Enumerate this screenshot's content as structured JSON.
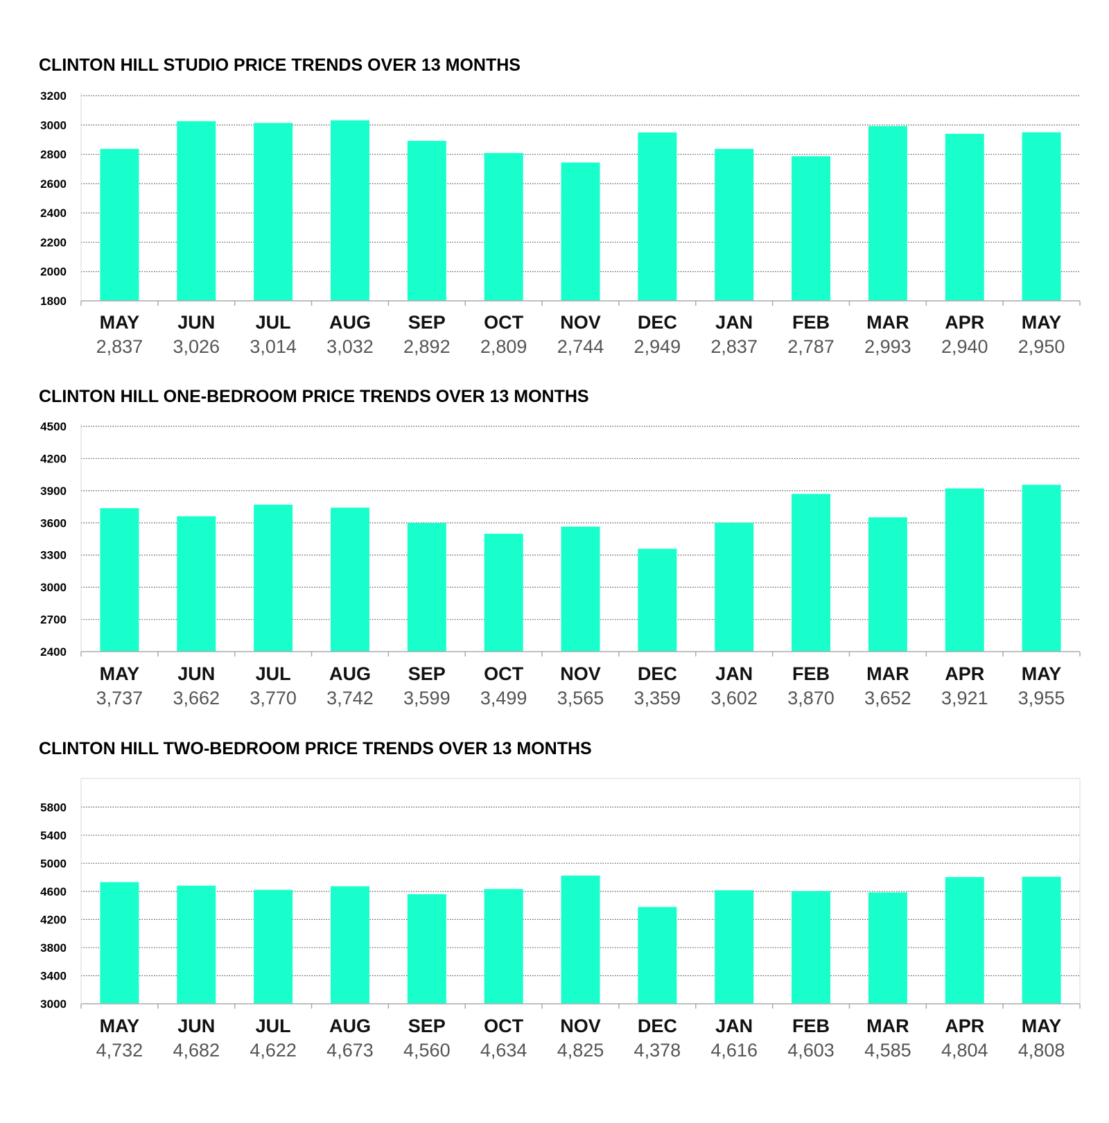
{
  "colors": {
    "bar": "#19ffcc",
    "grid": "#555555",
    "axis": "#aaaaaa",
    "title": "#000000",
    "month": "#111111",
    "value": "#555555"
  },
  "chart_data": [
    {
      "type": "bar",
      "title": "CLINTON HILL STUDIO PRICE TRENDS OVER 13 MONTHS",
      "categories": [
        "MAY",
        "JUN",
        "JUL",
        "AUG",
        "SEP",
        "OCT",
        "NOV",
        "DEC",
        "JAN",
        "FEB",
        "MAR",
        "APR",
        "MAY"
      ],
      "values": [
        2837,
        3026,
        3014,
        3032,
        2892,
        2809,
        2744,
        2949,
        2837,
        2787,
        2993,
        2940,
        2950
      ],
      "value_labels": [
        "2,837",
        "3,026",
        "3,014",
        "3,032",
        "2,892",
        "2,809",
        "2,744",
        "2,949",
        "2,837",
        "2,787",
        "2,993",
        "2,940",
        "2,950"
      ],
      "yticks": [
        "1800",
        "2000",
        "2200",
        "2400",
        "2600",
        "2800",
        "3000",
        "3200"
      ],
      "ylim": [
        1800,
        3200
      ],
      "grid": true
    },
    {
      "type": "bar",
      "title": "CLINTON HILL ONE-BEDROOM PRICE TRENDS OVER 13 MONTHS",
      "categories": [
        "MAY",
        "JUN",
        "JUL",
        "AUG",
        "SEP",
        "OCT",
        "NOV",
        "DEC",
        "JAN",
        "FEB",
        "MAR",
        "APR",
        "MAY"
      ],
      "values": [
        3737,
        3662,
        3770,
        3742,
        3599,
        3499,
        3565,
        3359,
        3602,
        3870,
        3652,
        3921,
        3955
      ],
      "value_labels": [
        "3,737",
        "3,662",
        "3,770",
        "3,742",
        "3,599",
        "3,499",
        "3,565",
        "3,359",
        "3,602",
        "3,870",
        "3,652",
        "3,921",
        "3,955"
      ],
      "yticks": [
        "2400",
        "2700",
        "3000",
        "3300",
        "3600",
        "3900",
        "4200",
        "4500"
      ],
      "ylim": [
        2400,
        4500
      ],
      "grid": true
    },
    {
      "type": "bar",
      "title": "CLINTON HILL TWO-BEDROOM PRICE TRENDS OVER 13 MONTHS",
      "categories": [
        "MAY",
        "JUN",
        "JUL",
        "AUG",
        "SEP",
        "OCT",
        "NOV",
        "DEC",
        "JAN",
        "FEB",
        "MAR",
        "APR",
        "MAY"
      ],
      "values": [
        4732,
        4682,
        4622,
        4673,
        4560,
        4634,
        4825,
        4378,
        4616,
        4603,
        4585,
        4804,
        4808
      ],
      "value_labels": [
        "4,732",
        "4,682",
        "4,622",
        "4,673",
        "4,560",
        "4,634",
        "4,825",
        "4,378",
        "4,616",
        "4,603",
        "4,585",
        "4,804",
        "4,808"
      ],
      "yticks": [
        "3000",
        "3400",
        "3800",
        "4200",
        "4600",
        "5000",
        "5400",
        "5800"
      ],
      "ylim": [
        3000,
        6000
      ],
      "grid": true
    }
  ]
}
